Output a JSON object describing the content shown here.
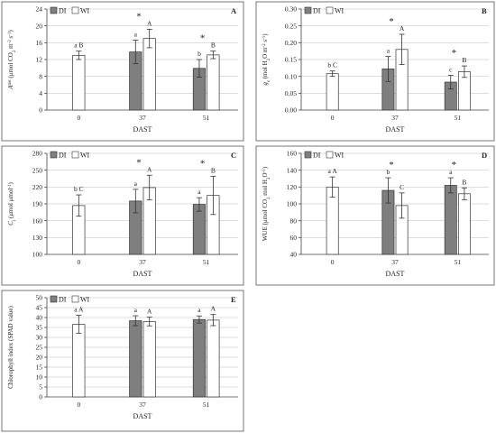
{
  "chart_data": [
    {
      "type": "bar",
      "panel": "A",
      "ylabel": "A^net (μmol CO₂ m⁻² s⁻¹)",
      "xlabel": "DAST",
      "categories": [
        "0",
        "37",
        "51"
      ],
      "ylim": [
        0,
        24
      ],
      "yticks": [
        "0",
        "4",
        "8",
        "12",
        "16",
        "20",
        "24"
      ],
      "legend": [
        "DI",
        "WI"
      ],
      "series": [
        {
          "name": "DI",
          "color": "#7f7f7f",
          "values": [
            null,
            13.8,
            9.9
          ],
          "errors": [
            null,
            2.8,
            2.1
          ]
        },
        {
          "name": "WI",
          "color": "#ffffff",
          "values": [
            13.0,
            17.0,
            13.1
          ],
          "errors": [
            1.0,
            2.2,
            0.9
          ]
        }
      ],
      "sig_letters": {
        "DI": [
          "",
          "a",
          "b"
        ],
        "WI": [
          "a B",
          "A",
          "B"
        ]
      },
      "stars": [
        "",
        "*",
        "*"
      ]
    },
    {
      "type": "bar",
      "panel": "B",
      "ylabel": "gs (mol H₂O m⁻² s⁻¹)",
      "xlabel": "DAST",
      "categories": [
        "0",
        "37",
        "51"
      ],
      "ylim": [
        0,
        0.3
      ],
      "yticks": [
        "0.00",
        "0.05",
        "0.10",
        "0.15",
        "0.20",
        "0.25",
        "0.30"
      ],
      "legend": [
        "DI",
        "WI"
      ],
      "series": [
        {
          "name": "DI",
          "color": "#7f7f7f",
          "values": [
            null,
            0.122,
            0.083
          ],
          "errors": [
            null,
            0.037,
            0.02
          ]
        },
        {
          "name": "WI",
          "color": "#ffffff",
          "values": [
            0.108,
            0.18,
            0.114
          ],
          "errors": [
            0.008,
            0.045,
            0.017
          ]
        }
      ],
      "sig_letters": {
        "DI": [
          "",
          "a",
          "c"
        ],
        "WI": [
          "b C",
          "A",
          "B"
        ]
      },
      "stars": [
        "",
        "*",
        "*"
      ]
    },
    {
      "type": "bar",
      "panel": "C",
      "ylabel": "Ci (μmol μmol⁻¹)",
      "xlabel": "DAST",
      "categories": [
        "0",
        "37",
        "51"
      ],
      "ylim": [
        100,
        280
      ],
      "yticks": [
        "100",
        "130",
        "160",
        "190",
        "220",
        "250",
        "280"
      ],
      "legend": [
        "DI",
        "WI"
      ],
      "series": [
        {
          "name": "DI",
          "color": "#7f7f7f",
          "values": [
            null,
            195,
            189
          ],
          "errors": [
            null,
            21,
            12
          ]
        },
        {
          "name": "WI",
          "color": "#ffffff",
          "values": [
            187,
            219,
            205
          ],
          "errors": [
            19,
            22,
            34
          ]
        }
      ],
      "sig_letters": {
        "DI": [
          "",
          "a",
          "a"
        ],
        "WI": [
          "b C",
          "A",
          "B"
        ]
      },
      "stars": [
        "",
        "*",
        "*"
      ]
    },
    {
      "type": "bar",
      "panel": "D",
      "ylabel": "WUE (μmol CO₂ mol H₂O⁻¹)",
      "xlabel": "DAST",
      "categories": [
        "0",
        "37",
        "51"
      ],
      "ylim": [
        40,
        160
      ],
      "yticks": [
        "40",
        "60",
        "80",
        "100",
        "120",
        "140",
        "160"
      ],
      "legend": [
        "DI",
        "WI"
      ],
      "series": [
        {
          "name": "DI",
          "color": "#7f7f7f",
          "values": [
            null,
            116,
            122
          ],
          "errors": [
            null,
            15,
            9
          ]
        },
        {
          "name": "WI",
          "color": "#ffffff",
          "values": [
            120,
            98,
            112
          ],
          "errors": [
            12,
            15,
            7
          ]
        }
      ],
      "sig_letters": {
        "DI": [
          "",
          "b",
          "a"
        ],
        "WI": [
          "a A",
          "C",
          "B"
        ]
      },
      "stars": [
        "",
        "*",
        "*"
      ]
    },
    {
      "type": "bar",
      "panel": "E",
      "ylabel": "Chlorophyll index (SPAD value)",
      "xlabel": "DAST",
      "categories": [
        "0",
        "37",
        "51"
      ],
      "ylim": [
        0,
        50
      ],
      "yticks": [
        "0",
        "5",
        "10",
        "15",
        "20",
        "25",
        "30",
        "35",
        "40",
        "45",
        "50"
      ],
      "legend": [
        "DI",
        "WI"
      ],
      "series": [
        {
          "name": "DI",
          "color": "#7f7f7f",
          "values": [
            null,
            38.4,
            39.0
          ],
          "errors": [
            null,
            2.5,
            1.8
          ]
        },
        {
          "name": "WI",
          "color": "#ffffff",
          "values": [
            36.6,
            38.0,
            38.7
          ],
          "errors": [
            4.5,
            2.2,
            2.8
          ]
        }
      ],
      "sig_letters": {
        "DI": [
          "",
          "a",
          "a"
        ],
        "WI": [
          "a A",
          "A",
          "A"
        ]
      },
      "stars": [
        "",
        "",
        ""
      ]
    }
  ]
}
